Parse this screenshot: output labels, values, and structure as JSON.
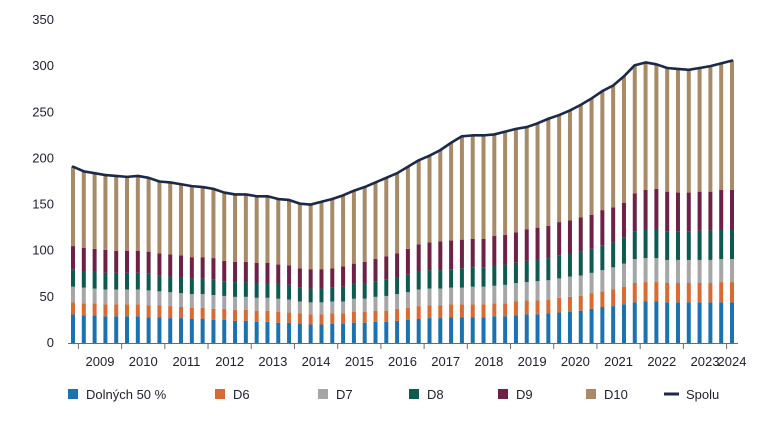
{
  "chart_data": {
    "type": "bar",
    "stacked": true,
    "ylim": [
      0,
      350
    ],
    "yticks": [
      0,
      50,
      100,
      150,
      200,
      250,
      300,
      350
    ],
    "year_labels": [
      "2009",
      "2010",
      "2011",
      "2012",
      "2013",
      "2014",
      "2015",
      "2016",
      "2017",
      "2018",
      "2019",
      "2020",
      "2021",
      "2022",
      "2023",
      "2024"
    ],
    "x_start": "2008-Q4",
    "legend_position": "bottom",
    "grid": false,
    "series": [
      {
        "name": "Dolných 50 %",
        "color": "#1a73b0",
        "values": [
          31,
          30,
          30,
          29,
          29,
          29,
          29,
          28,
          28,
          27,
          27,
          26,
          26,
          25,
          25,
          24,
          24,
          23,
          23,
          22,
          22,
          21,
          20,
          20,
          21,
          21,
          22,
          22,
          23,
          23,
          24,
          25,
          26,
          27,
          27,
          28,
          28,
          28,
          28,
          29,
          29,
          30,
          31,
          31,
          32,
          33,
          34,
          35,
          37,
          39,
          40,
          42,
          44,
          45,
          45,
          44,
          44,
          44,
          44,
          44,
          44,
          44
        ]
      },
      {
        "name": "D6",
        "color": "#d86a33",
        "values": [
          13,
          13,
          13,
          13,
          13,
          13,
          13,
          13,
          13,
          13,
          12,
          12,
          12,
          12,
          12,
          12,
          12,
          12,
          12,
          12,
          11,
          11,
          11,
          11,
          11,
          11,
          12,
          12,
          12,
          12,
          13,
          13,
          14,
          14,
          14,
          14,
          14,
          14,
          14,
          14,
          14,
          15,
          15,
          15,
          15,
          16,
          16,
          16,
          17,
          17,
          18,
          19,
          21,
          21,
          21,
          21,
          21,
          21,
          21,
          21,
          22,
          22
        ]
      },
      {
        "name": "D7",
        "color": "#a6a6a6",
        "values": [
          17,
          17,
          16,
          16,
          16,
          16,
          16,
          16,
          15,
          15,
          15,
          15,
          15,
          15,
          14,
          14,
          14,
          14,
          14,
          14,
          14,
          13,
          13,
          13,
          13,
          13,
          14,
          14,
          15,
          16,
          16,
          17,
          18,
          18,
          18,
          18,
          18,
          19,
          19,
          19,
          20,
          20,
          20,
          21,
          21,
          21,
          22,
          22,
          22,
          23,
          24,
          25,
          26,
          26,
          26,
          25,
          25,
          25,
          25,
          25,
          25,
          25
        ]
      },
      {
        "name": "D8",
        "color": "#0e5a50",
        "values": [
          19,
          18,
          18,
          18,
          18,
          18,
          18,
          18,
          17,
          17,
          17,
          17,
          17,
          17,
          16,
          16,
          16,
          16,
          16,
          16,
          16,
          15,
          15,
          15,
          15,
          16,
          16,
          17,
          17,
          18,
          18,
          19,
          20,
          20,
          20,
          20,
          21,
          21,
          21,
          22,
          22,
          22,
          23,
          24,
          24,
          25,
          25,
          26,
          26,
          27,
          27,
          28,
          30,
          31,
          31,
          31,
          31,
          31,
          32,
          32,
          32,
          32
        ]
      },
      {
        "name": "D9",
        "color": "#6e2145",
        "values": [
          25,
          25,
          25,
          25,
          24,
          24,
          24,
          24,
          24,
          24,
          24,
          23,
          23,
          23,
          22,
          22,
          22,
          22,
          22,
          21,
          21,
          21,
          21,
          21,
          21,
          22,
          22,
          23,
          24,
          25,
          26,
          28,
          29,
          30,
          31,
          31,
          31,
          31,
          31,
          32,
          32,
          33,
          34,
          34,
          35,
          36,
          36,
          37,
          37,
          38,
          38,
          38,
          41,
          43,
          44,
          43,
          42,
          42,
          42,
          42,
          43,
          43
        ]
      },
      {
        "name": "D10",
        "color": "#a88a67",
        "values": [
          86,
          83,
          82,
          81,
          81,
          80,
          81,
          80,
          78,
          78,
          77,
          77,
          76,
          75,
          74,
          73,
          73,
          72,
          72,
          71,
          71,
          70,
          70,
          73,
          75,
          77,
          79,
          81,
          83,
          85,
          87,
          89,
          91,
          94,
          99,
          106,
          112,
          112,
          112,
          110,
          112,
          112,
          111,
          113,
          116,
          116,
          119,
          122,
          126,
          129,
          132,
          137,
          139,
          138,
          135,
          134,
          134,
          133,
          134,
          136,
          137,
          140
        ]
      }
    ],
    "total": {
      "name": "Spolu",
      "color": "#1c2a4a"
    }
  }
}
